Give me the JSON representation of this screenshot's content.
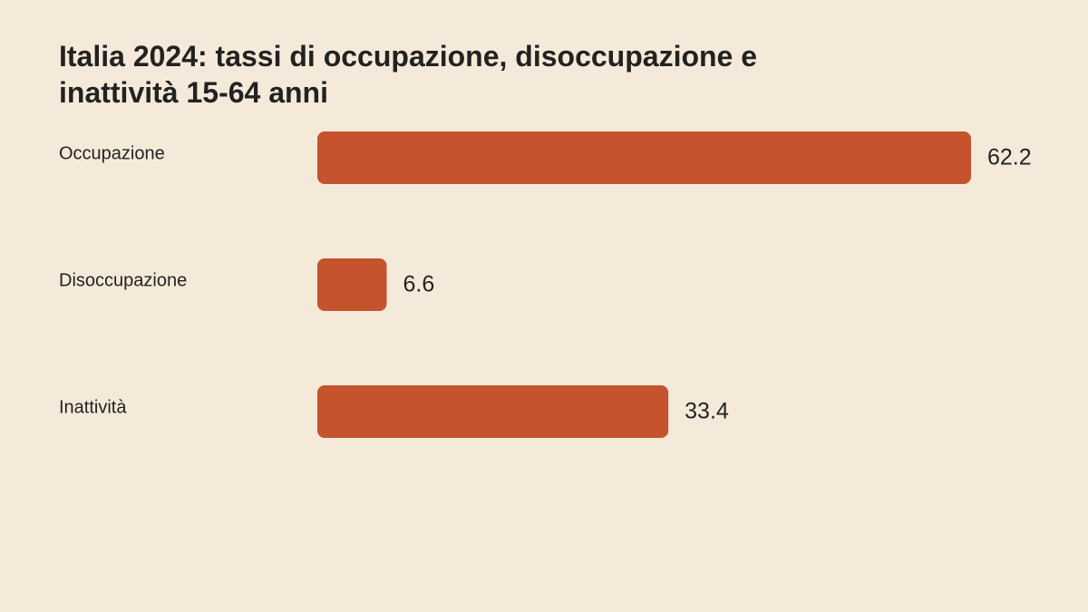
{
  "chart_data": {
    "type": "hbar",
    "title": "Italia 2024: tassi di occupazione, disoccupazione e inattività 15-64 anni",
    "categories": [
      "Occupazione",
      "Disoccupazione",
      "Inattività"
    ],
    "values": [
      62.2,
      6.6,
      33.4
    ],
    "color": "#c4532e"
  }
}
